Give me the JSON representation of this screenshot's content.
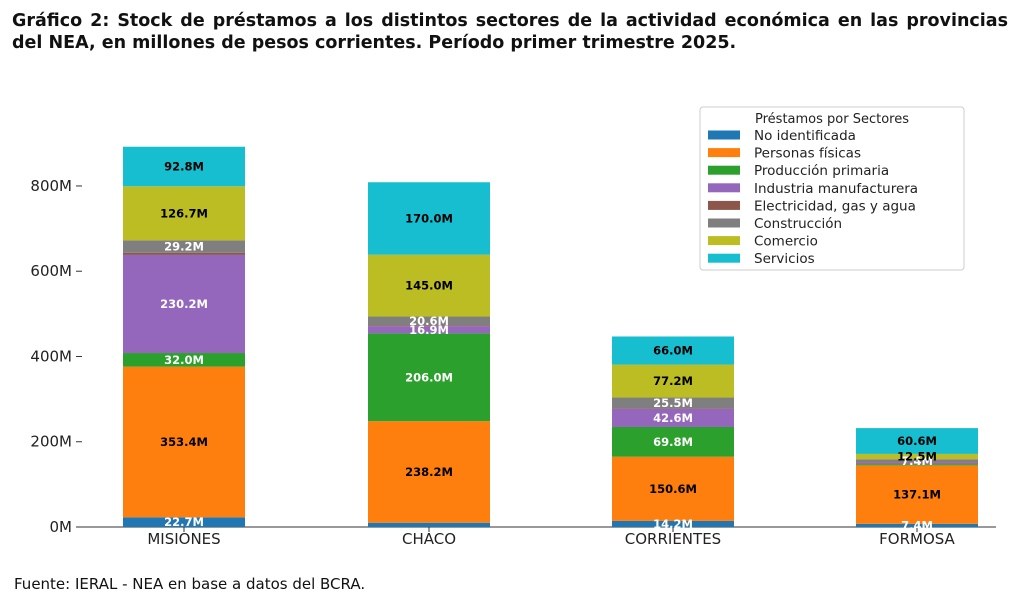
{
  "title": "Gráfico 2: Stock de préstamos a los distintos sectores de la actividad económica en las provincias del NEA, en millones de pesos corrientes. Período primer trimestre 2025.",
  "source": "Fuente: IERAL - NEA en base a datos del BCRA.",
  "chart_data": {
    "type": "bar",
    "stacked": true,
    "categories": [
      "MISIONES",
      "CHACO",
      "CORRIENTES",
      "FORMOSA"
    ],
    "legend_title": "Préstamos por Sectores",
    "legend_position": "top-right",
    "yticks": [
      "0M",
      "200M",
      "400M",
      "600M",
      "800M"
    ],
    "ylim": [
      0,
      900
    ],
    "grid": false,
    "series": [
      {
        "name": "No identificada",
        "color": "#1f77b4",
        "values": [
          22.7,
          10.0,
          14.2,
          7.4
        ],
        "labels": [
          "22.7M",
          "",
          "14.2M",
          "7.4M"
        ]
      },
      {
        "name": "Personas físicas",
        "color": "#ff7f0e",
        "values": [
          353.4,
          238.2,
          150.6,
          137.1
        ],
        "labels": [
          "353.4M",
          "238.2M",
          "150.6M",
          "137.1M"
        ]
      },
      {
        "name": "Producción primaria",
        "color": "#2ca02c",
        "values": [
          32.0,
          206.0,
          69.8,
          3.0
        ],
        "labels": [
          "32.0M",
          "206.0M",
          "69.8M",
          ""
        ]
      },
      {
        "name": "Industria manufacturera",
        "color": "#9467bd",
        "values": [
          230.2,
          16.9,
          42.6,
          3.0
        ],
        "labels": [
          "230.2M",
          "16.9M",
          "42.6M",
          ""
        ]
      },
      {
        "name": "Electricidad, gas y agua",
        "color": "#8c564b",
        "values": [
          5.0,
          2.0,
          1.0,
          1.0
        ],
        "labels": [
          "",
          "",
          "",
          ""
        ]
      },
      {
        "name": "Construcción",
        "color": "#7f7f7f",
        "values": [
          29.2,
          20.6,
          25.5,
          7.4
        ],
        "labels": [
          "29.2M",
          "20.6M",
          "25.5M",
          "7.4M"
        ]
      },
      {
        "name": "Comercio",
        "color": "#bcbd22",
        "values": [
          126.7,
          145.0,
          77.2,
          12.5
        ],
        "labels": [
          "126.7M",
          "145.0M",
          "77.2M",
          "12.5M"
        ]
      },
      {
        "name": "Servicios",
        "color": "#17becf",
        "values": [
          92.8,
          170.0,
          66.0,
          60.6
        ],
        "labels": [
          "92.8M",
          "170.0M",
          "66.0M",
          "60.6M"
        ]
      }
    ]
  }
}
